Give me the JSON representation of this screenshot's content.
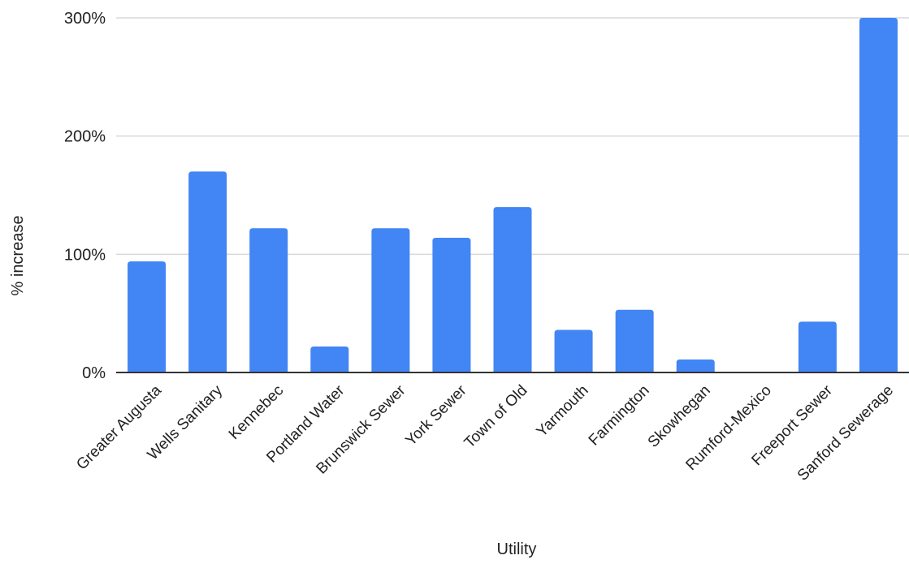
{
  "chart_data": {
    "type": "bar",
    "title": "",
    "xlabel": "Utility",
    "ylabel": "% increase",
    "categories": [
      "Greater Augusta",
      "Wells Sanitary",
      "Kennebec",
      "Portland Water",
      "Brunswick Sewer",
      "York Sewer",
      "Town of Old",
      "Yarmouth",
      "Farmington",
      "Skowhegan",
      "Rumford-Mexico",
      "Freeport Sewer",
      "Sanford Sewerage"
    ],
    "series": [
      {
        "values": [
          94,
          170,
          122,
          22,
          122,
          114,
          140,
          36,
          53,
          11,
          0,
          43,
          300
        ]
      }
    ],
    "ylim": [
      0,
      300
    ],
    "yticks": [
      {
        "value": 0,
        "label": "0%"
      },
      {
        "value": 100,
        "label": "100%"
      },
      {
        "value": 200,
        "label": "200%"
      },
      {
        "value": 300,
        "label": "300%"
      }
    ],
    "grid": true,
    "legend": "none",
    "bar_color": "#4285f4",
    "grid_color": "#d9d9d9",
    "baseline_color": "#333333"
  }
}
